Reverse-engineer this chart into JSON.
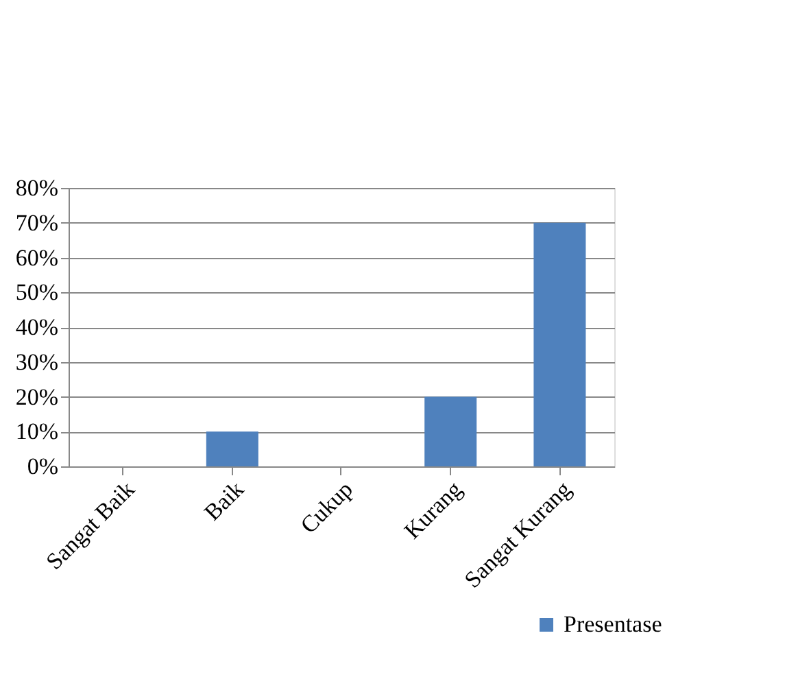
{
  "chart_data": {
    "type": "bar",
    "categories": [
      "Sangat Baik",
      "Baik",
      "Cukup",
      "Kurang",
      "Sangat Kurang"
    ],
    "series": [
      {
        "name": "Presentase",
        "color": "#4f81bd",
        "values": [
          0,
          10,
          0,
          20,
          70
        ]
      }
    ],
    "ylim": [
      0,
      80
    ],
    "yticks": [
      {
        "value": 0,
        "label": "0%"
      },
      {
        "value": 10,
        "label": "10%"
      },
      {
        "value": 20,
        "label": "20%"
      },
      {
        "value": 30,
        "label": "30%"
      },
      {
        "value": 40,
        "label": "40%"
      },
      {
        "value": 50,
        "label": "50%"
      },
      {
        "value": 60,
        "label": "60%"
      },
      {
        "value": 70,
        "label": "70%"
      },
      {
        "value": 80,
        "label": "80%"
      }
    ],
    "grid": "y",
    "legend": "bottom right"
  }
}
